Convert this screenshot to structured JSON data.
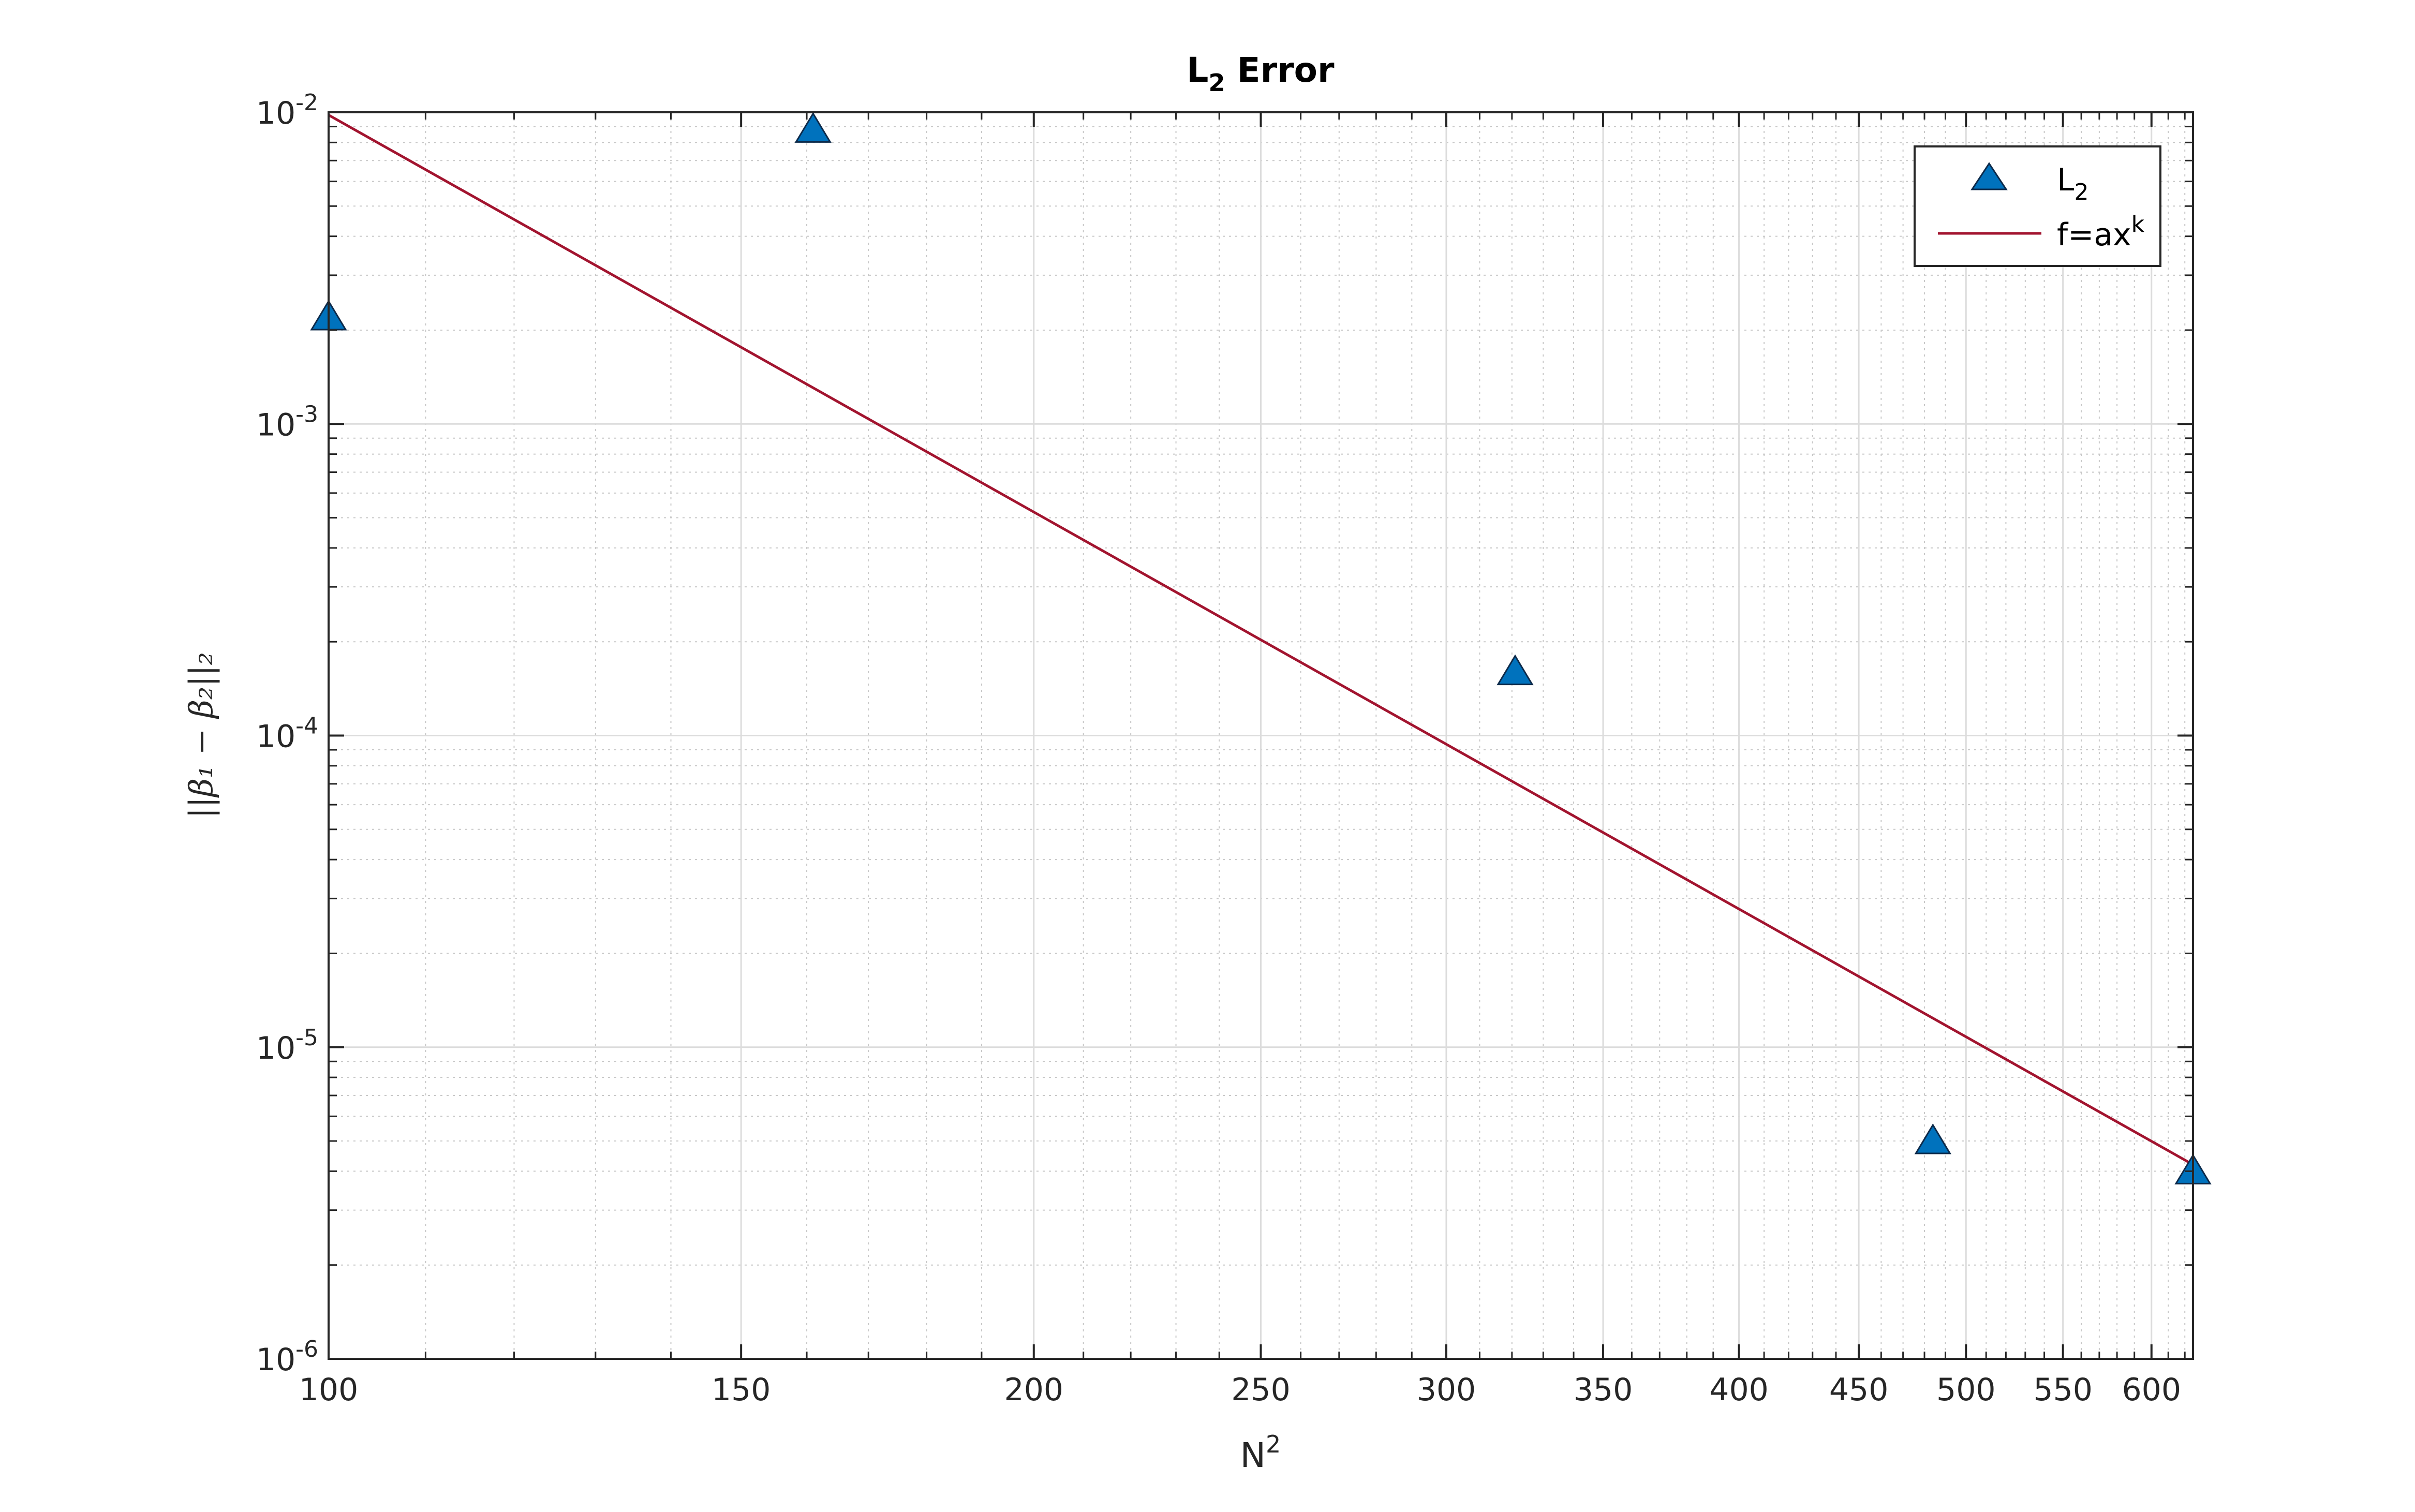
{
  "chart_data": {
    "type": "scatter",
    "title": {
      "base": "L",
      "sub": "2",
      "rest": " Error"
    },
    "xlabel": {
      "base": "N",
      "sup": "2"
    },
    "ylabel": "||β₁ − β₂||₂",
    "x_scale": "log",
    "y_scale": "log",
    "xlim": [
      100,
      625
    ],
    "ylim": [
      1e-06,
      0.01
    ],
    "x_ticks": [
      100,
      150,
      200,
      250,
      300,
      350,
      400,
      450,
      500,
      550,
      600
    ],
    "x_tick_labels": [
      "100",
      "150",
      "200",
      "250",
      "300",
      "350",
      "400",
      "450",
      "500",
      "550",
      "600"
    ],
    "y_ticks": [
      {
        "value": 1e-06,
        "base": "10",
        "exp": "-6"
      },
      {
        "value": 1e-05,
        "base": "10",
        "exp": "-5"
      },
      {
        "value": 0.0001,
        "base": "10",
        "exp": "-4"
      },
      {
        "value": 0.001,
        "base": "10",
        "exp": "-3"
      },
      {
        "value": 0.01,
        "base": "10",
        "exp": "-2"
      }
    ],
    "grid": true,
    "legend_position": "top-right",
    "series": [
      {
        "name": {
          "base": "L",
          "sub": "2"
        },
        "type": "scatter",
        "marker": "triangle-up",
        "color": "#0072BD",
        "x": [
          100,
          161,
          321,
          484,
          625
        ],
        "y": [
          0.0022,
          0.0088,
          0.00016,
          5e-06,
          4e-06
        ]
      },
      {
        "name": {
          "base": "f=ax",
          "sup": "k"
        },
        "type": "line",
        "color": "#A2142F",
        "x": [
          100,
          625
        ],
        "y": [
          0.0098,
          4.2e-06
        ]
      }
    ]
  }
}
